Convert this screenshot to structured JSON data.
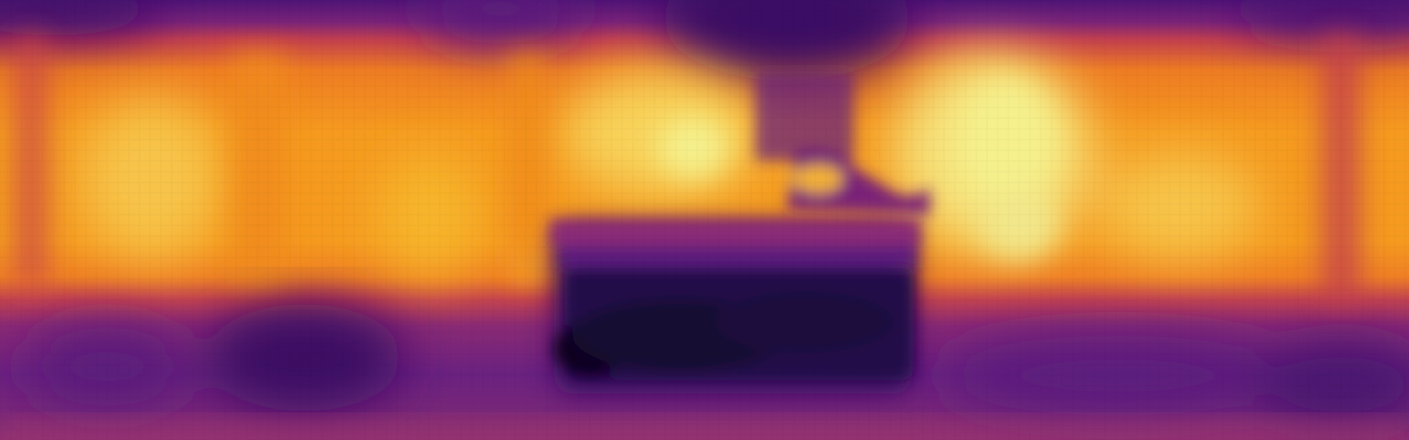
{
  "image": {
    "kind": "heatmap-visualization",
    "colormap": "inferno",
    "palette": {
      "darkest": "#08051a",
      "deep_purple": "#3a0f63",
      "purple": "#5c1b7d",
      "magenta": "#8b2a77",
      "red_orange": "#d8473b",
      "orange": "#f08a1d",
      "amber": "#f7b52a",
      "pale_yellow": "#f5f08c"
    }
  }
}
